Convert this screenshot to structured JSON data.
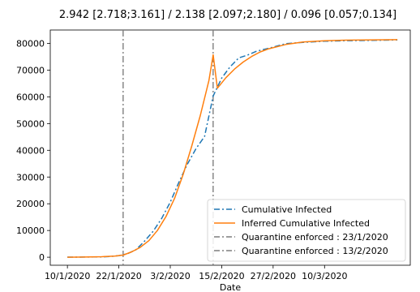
{
  "chart_data": {
    "type": "line",
    "title": "2.942  [2.718;3.161] / 2.138  [2.097;2.180] / 0.096  [0.057;0.134]",
    "xlabel": "Date",
    "ylabel": "",
    "x_start": "2020-01-10",
    "x_end": "2020-03-27",
    "xlim": [
      "2020-01-06",
      "2020-03-30"
    ],
    "ylim": [
      -3000,
      85000
    ],
    "x_ticks": [
      {
        "date": "2020-01-10",
        "label": "10/1/2020"
      },
      {
        "date": "2020-01-22",
        "label": "22/1/2020"
      },
      {
        "date": "2020-02-03",
        "label": "3/2/2020"
      },
      {
        "date": "2020-02-15",
        "label": "15/2/2020"
      },
      {
        "date": "2020-02-27",
        "label": "27/2/2020"
      },
      {
        "date": "2020-03-10",
        "label": "10/3/2020"
      }
    ],
    "y_ticks": [
      0,
      10000,
      20000,
      30000,
      40000,
      50000,
      60000,
      70000,
      80000
    ],
    "vlines": [
      {
        "date": "2020-01-23",
        "label": "Quarantine enforced : 23/1/2020",
        "color": "#7f7f7f"
      },
      {
        "date": "2020-02-13",
        "label": "Quarantine enforced : 13/2/2020",
        "color": "#7f7f7f"
      }
    ],
    "series": [
      {
        "name": "Cumulative Infected",
        "color": "#1f77b4",
        "style": "dashdot",
        "points": [
          [
            "2020-01-10",
            41
          ],
          [
            "2020-01-12",
            45
          ],
          [
            "2020-01-14",
            50
          ],
          [
            "2020-01-16",
            100
          ],
          [
            "2020-01-18",
            130
          ],
          [
            "2020-01-20",
            280
          ],
          [
            "2020-01-22",
            570
          ],
          [
            "2020-01-24",
            1300
          ],
          [
            "2020-01-26",
            2800
          ],
          [
            "2020-01-28",
            6000
          ],
          [
            "2020-01-30",
            9700
          ],
          [
            "2020-02-01",
            14500
          ],
          [
            "2020-02-03",
            20600
          ],
          [
            "2020-02-05",
            28000
          ],
          [
            "2020-02-07",
            34800
          ],
          [
            "2020-02-09",
            40600
          ],
          [
            "2020-02-11",
            45200
          ],
          [
            "2020-02-13",
            60300
          ],
          [
            "2020-02-15",
            67000
          ],
          [
            "2020-02-17",
            71300
          ],
          [
            "2020-02-19",
            74600
          ],
          [
            "2020-02-21",
            75600
          ],
          [
            "2020-02-23",
            77000
          ],
          [
            "2020-02-25",
            77800
          ],
          [
            "2020-02-27",
            78600
          ],
          [
            "2020-03-01",
            79900
          ],
          [
            "2020-03-05",
            80400
          ],
          [
            "2020-03-10",
            80800
          ],
          [
            "2020-03-15",
            81000
          ],
          [
            "2020-03-20",
            81100
          ],
          [
            "2020-03-27",
            81300
          ]
        ]
      },
      {
        "name": "Inferred Cumulative Infected",
        "color": "#ff7f0e",
        "style": "solid",
        "points": [
          [
            "2020-01-10",
            0
          ],
          [
            "2020-01-14",
            50
          ],
          [
            "2020-01-18",
            180
          ],
          [
            "2020-01-21",
            420
          ],
          [
            "2020-01-23",
            800
          ],
          [
            "2020-01-25",
            2000
          ],
          [
            "2020-01-27",
            3700
          ],
          [
            "2020-01-29",
            6200
          ],
          [
            "2020-01-31",
            10000
          ],
          [
            "2020-02-02",
            15200
          ],
          [
            "2020-02-04",
            22000
          ],
          [
            "2020-02-06",
            31000
          ],
          [
            "2020-02-08",
            41500
          ],
          [
            "2020-02-10",
            53000
          ],
          [
            "2020-02-12",
            66000
          ],
          [
            "2020-02-13",
            75700
          ],
          [
            "2020-02-14",
            63200
          ],
          [
            "2020-02-16",
            67200
          ],
          [
            "2020-02-18",
            70400
          ],
          [
            "2020-02-20",
            73000
          ],
          [
            "2020-02-22",
            75100
          ],
          [
            "2020-02-24",
            76800
          ],
          [
            "2020-02-26",
            78000
          ],
          [
            "2020-03-01",
            79600
          ],
          [
            "2020-03-05",
            80500
          ],
          [
            "2020-03-10",
            81000
          ],
          [
            "2020-03-15",
            81200
          ],
          [
            "2020-03-20",
            81300
          ],
          [
            "2020-03-27",
            81400
          ]
        ]
      }
    ],
    "legend": {
      "placement": "bottom-right"
    }
  }
}
